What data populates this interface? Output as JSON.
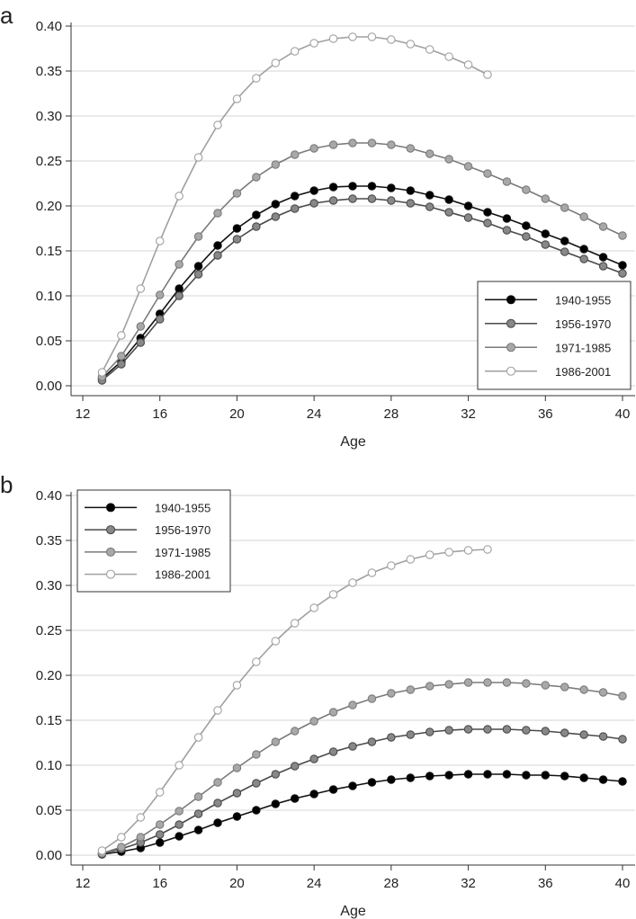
{
  "chart_data": [
    {
      "panel": "a",
      "type": "line",
      "xlabel": "Age",
      "ylabel": "",
      "xlim": [
        12,
        40
      ],
      "ylim": [
        0,
        0.4
      ],
      "xticks": [
        12,
        16,
        20,
        24,
        28,
        32,
        36,
        40
      ],
      "yticks": [
        0,
        0.05,
        0.1,
        0.15,
        0.2,
        0.25,
        0.3,
        0.35,
        0.4
      ],
      "ytick_labels": [
        "0.00",
        "0.05",
        "0.10",
        "0.15",
        "0.20",
        "0.25",
        "0.30",
        "0.35",
        "0.40"
      ],
      "grid": true,
      "legend_position": "bottom-right",
      "series": [
        {
          "name": "1940-1955",
          "color": "#111111",
          "fill": "#000000",
          "x": [
            13,
            14,
            15,
            16,
            17,
            18,
            19,
            20,
            21,
            22,
            23,
            24,
            25,
            26,
            27,
            28,
            29,
            30,
            31,
            32,
            33,
            34,
            35,
            36,
            37,
            38,
            39,
            40
          ],
          "values": [
            0.008,
            0.027,
            0.053,
            0.08,
            0.108,
            0.133,
            0.156,
            0.175,
            0.19,
            0.202,
            0.211,
            0.217,
            0.221,
            0.222,
            0.222,
            0.22,
            0.217,
            0.212,
            0.207,
            0.2,
            0.193,
            0.186,
            0.178,
            0.169,
            0.161,
            0.152,
            0.143,
            0.134
          ]
        },
        {
          "name": "1956-1970",
          "color": "#4a4a4a",
          "fill": "#888888",
          "x": [
            13,
            14,
            15,
            16,
            17,
            18,
            19,
            20,
            21,
            22,
            23,
            24,
            25,
            26,
            27,
            28,
            29,
            30,
            31,
            32,
            33,
            34,
            35,
            36,
            37,
            38,
            39,
            40
          ],
          "values": [
            0.006,
            0.024,
            0.048,
            0.074,
            0.1,
            0.124,
            0.145,
            0.163,
            0.177,
            0.188,
            0.197,
            0.203,
            0.206,
            0.208,
            0.208,
            0.206,
            0.203,
            0.199,
            0.193,
            0.187,
            0.181,
            0.173,
            0.166,
            0.157,
            0.149,
            0.141,
            0.133,
            0.125
          ]
        },
        {
          "name": "1971-1985",
          "color": "#7a7a7a",
          "fill": "#a8a8a8",
          "x": [
            13,
            14,
            15,
            16,
            17,
            18,
            19,
            20,
            21,
            22,
            23,
            24,
            25,
            26,
            27,
            28,
            29,
            30,
            31,
            32,
            33,
            34,
            35,
            36,
            37,
            38,
            39,
            40
          ],
          "values": [
            0.01,
            0.033,
            0.066,
            0.101,
            0.135,
            0.166,
            0.192,
            0.214,
            0.232,
            0.246,
            0.257,
            0.264,
            0.268,
            0.27,
            0.27,
            0.268,
            0.264,
            0.258,
            0.252,
            0.244,
            0.236,
            0.227,
            0.218,
            0.208,
            0.198,
            0.188,
            0.177,
            0.167
          ]
        },
        {
          "name": "1986-2001",
          "color": "#a0a0a0",
          "fill": "#ffffff",
          "x": [
            13,
            14,
            15,
            16,
            17,
            18,
            19,
            20,
            21,
            22,
            23,
            24,
            25,
            26,
            27,
            28,
            29,
            30,
            31,
            32,
            33
          ],
          "values": [
            0.015,
            0.056,
            0.108,
            0.161,
            0.211,
            0.254,
            0.29,
            0.319,
            0.342,
            0.359,
            0.372,
            0.381,
            0.386,
            0.388,
            0.388,
            0.385,
            0.38,
            0.374,
            0.366,
            0.357,
            0.346
          ]
        }
      ]
    },
    {
      "panel": "b",
      "type": "line",
      "xlabel": "Age",
      "ylabel": "",
      "xlim": [
        12,
        40
      ],
      "ylim": [
        0,
        0.4
      ],
      "xticks": [
        12,
        16,
        20,
        24,
        28,
        32,
        36,
        40
      ],
      "yticks": [
        0,
        0.05,
        0.1,
        0.15,
        0.2,
        0.25,
        0.3,
        0.35,
        0.4
      ],
      "ytick_labels": [
        "0.00",
        "0.05",
        "0.10",
        "0.15",
        "0.20",
        "0.25",
        "0.30",
        "0.35",
        "0.40"
      ],
      "grid": true,
      "legend_position": "top-left",
      "series": [
        {
          "name": "1940-1955",
          "color": "#111111",
          "fill": "#000000",
          "x": [
            13,
            14,
            15,
            16,
            17,
            18,
            19,
            20,
            21,
            22,
            23,
            24,
            25,
            26,
            27,
            28,
            29,
            30,
            31,
            32,
            33,
            34,
            35,
            36,
            37,
            38,
            39,
            40
          ],
          "values": [
            0.001,
            0.004,
            0.008,
            0.014,
            0.021,
            0.028,
            0.036,
            0.043,
            0.05,
            0.057,
            0.063,
            0.068,
            0.073,
            0.077,
            0.081,
            0.084,
            0.086,
            0.088,
            0.089,
            0.09,
            0.09,
            0.09,
            0.089,
            0.089,
            0.088,
            0.086,
            0.084,
            0.082
          ]
        },
        {
          "name": "1956-1970",
          "color": "#4a4a4a",
          "fill": "#888888",
          "x": [
            13,
            14,
            15,
            16,
            17,
            18,
            19,
            20,
            21,
            22,
            23,
            24,
            25,
            26,
            27,
            28,
            29,
            30,
            31,
            32,
            33,
            34,
            35,
            36,
            37,
            38,
            39,
            40
          ],
          "values": [
            0.002,
            0.007,
            0.014,
            0.023,
            0.034,
            0.046,
            0.058,
            0.069,
            0.08,
            0.09,
            0.099,
            0.107,
            0.115,
            0.121,
            0.126,
            0.131,
            0.134,
            0.137,
            0.139,
            0.14,
            0.14,
            0.14,
            0.139,
            0.138,
            0.136,
            0.134,
            0.132,
            0.129
          ]
        },
        {
          "name": "1971-1985",
          "color": "#7a7a7a",
          "fill": "#a8a8a8",
          "x": [
            13,
            14,
            15,
            16,
            17,
            18,
            19,
            20,
            21,
            22,
            23,
            24,
            25,
            26,
            27,
            28,
            29,
            30,
            31,
            32,
            33,
            34,
            35,
            36,
            37,
            38,
            39,
            40
          ],
          "values": [
            0.002,
            0.009,
            0.02,
            0.034,
            0.049,
            0.065,
            0.081,
            0.097,
            0.112,
            0.126,
            0.138,
            0.149,
            0.159,
            0.167,
            0.174,
            0.18,
            0.184,
            0.188,
            0.19,
            0.192,
            0.192,
            0.192,
            0.191,
            0.189,
            0.187,
            0.184,
            0.181,
            0.177
          ]
        },
        {
          "name": "1986-2001",
          "color": "#a0a0a0",
          "fill": "#ffffff",
          "x": [
            13,
            14,
            15,
            16,
            17,
            18,
            19,
            20,
            21,
            22,
            23,
            24,
            25,
            26,
            27,
            28,
            29,
            30,
            31,
            32,
            33
          ],
          "values": [
            0.005,
            0.02,
            0.042,
            0.07,
            0.1,
            0.131,
            0.161,
            0.189,
            0.215,
            0.238,
            0.258,
            0.275,
            0.29,
            0.303,
            0.314,
            0.322,
            0.329,
            0.334,
            0.337,
            0.339,
            0.34
          ]
        }
      ]
    }
  ]
}
